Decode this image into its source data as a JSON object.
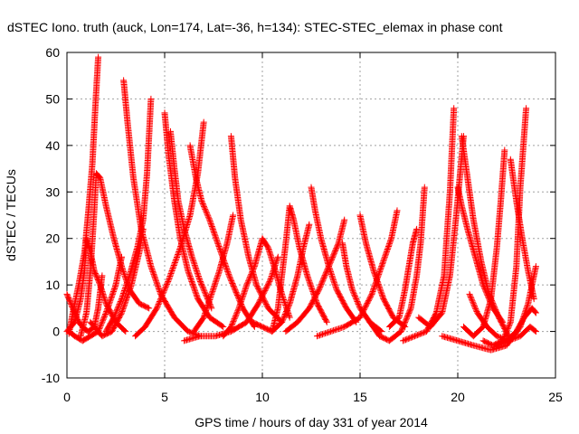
{
  "chart_data": {
    "type": "scatter",
    "title": "dSTEC Iono. truth (auck, Lon=174, Lat=-36, h=134): STEC-STEC_elemax in phase cont",
    "xlabel": "GPS time / hours of day 331 of year 2014",
    "ylabel": "dSTEC  / TECUs",
    "xlim": [
      0,
      25
    ],
    "ylim": [
      -10,
      60
    ],
    "x_ticks": [
      0,
      5,
      10,
      15,
      20,
      25
    ],
    "y_ticks": [
      -10,
      0,
      10,
      20,
      30,
      40,
      50,
      60
    ],
    "grid": true,
    "marker": "plus",
    "color": "#ff0000",
    "series": [
      {
        "points": [
          [
            0.0,
            8
          ],
          [
            0.3,
            5
          ],
          [
            0.6,
            2
          ],
          [
            0.9,
            0.5
          ],
          [
            1.1,
            0
          ],
          [
            1.4,
            1
          ],
          [
            1.6,
            5
          ],
          [
            1.8,
            12
          ]
        ]
      },
      {
        "points": [
          [
            0.1,
            -0.5
          ],
          [
            0.3,
            4
          ],
          [
            0.6,
            10
          ],
          [
            0.9,
            17
          ],
          [
            1.1,
            26
          ],
          [
            1.3,
            36
          ],
          [
            1.45,
            48
          ],
          [
            1.6,
            59
          ]
        ]
      },
      {
        "points": [
          [
            0.0,
            0
          ],
          [
            0.4,
            2
          ],
          [
            0.7,
            7
          ],
          [
            0.9,
            13
          ],
          [
            1.0,
            20
          ],
          [
            1.2,
            17
          ],
          [
            1.4,
            13
          ],
          [
            1.7,
            10
          ],
          [
            2.0,
            6
          ],
          [
            2.5,
            2
          ],
          [
            3.0,
            0
          ]
        ]
      },
      {
        "points": [
          [
            0.7,
            -1
          ],
          [
            1.0,
            4
          ],
          [
            1.2,
            13
          ],
          [
            1.4,
            26
          ],
          [
            1.5,
            34
          ],
          [
            1.7,
            33
          ],
          [
            2.0,
            27
          ],
          [
            2.4,
            20
          ],
          [
            2.8,
            14
          ],
          [
            3.2,
            9
          ],
          [
            3.7,
            6
          ],
          [
            4.2,
            5
          ]
        ]
      },
      {
        "points": [
          [
            0.1,
            0
          ],
          [
            0.4,
            -1
          ],
          [
            0.8,
            -2
          ],
          [
            1.2,
            -1
          ],
          [
            1.6,
            0
          ],
          [
            2.0,
            4
          ],
          [
            2.5,
            10
          ],
          [
            2.8,
            16
          ]
        ]
      },
      {
        "points": [
          [
            2.9,
            54
          ],
          [
            3.1,
            45
          ],
          [
            3.4,
            33
          ],
          [
            3.8,
            22
          ],
          [
            4.3,
            14
          ],
          [
            4.8,
            8
          ],
          [
            5.5,
            3
          ],
          [
            6.2,
            0
          ],
          [
            6.8,
            -1
          ]
        ]
      },
      {
        "points": [
          [
            2.0,
            0
          ],
          [
            2.4,
            3
          ],
          [
            2.8,
            7
          ],
          [
            3.2,
            12
          ],
          [
            3.6,
            18
          ],
          [
            3.9,
            24
          ],
          [
            4.1,
            34
          ],
          [
            4.3,
            50
          ]
        ]
      },
      {
        "points": [
          [
            1.2,
            2
          ],
          [
            1.8,
            -1
          ],
          [
            2.3,
            0
          ],
          [
            2.8,
            4
          ],
          [
            3.3,
            10
          ],
          [
            3.7,
            17
          ],
          [
            3.9,
            22
          ]
        ]
      },
      {
        "points": [
          [
            5.0,
            47
          ],
          [
            5.2,
            38
          ],
          [
            5.5,
            28
          ],
          [
            5.8,
            20
          ],
          [
            6.2,
            13
          ],
          [
            6.7,
            7
          ],
          [
            7.3,
            3
          ],
          [
            8.0,
            1
          ]
        ]
      },
      {
        "points": [
          [
            5.3,
            43
          ],
          [
            5.5,
            35
          ],
          [
            5.7,
            28
          ],
          [
            6.0,
            22
          ],
          [
            6.4,
            16
          ],
          [
            6.8,
            11
          ],
          [
            7.4,
            5
          ]
        ]
      },
      {
        "points": [
          [
            3.5,
            -1
          ],
          [
            4.0,
            1
          ],
          [
            4.6,
            5
          ],
          [
            5.2,
            11
          ],
          [
            5.8,
            18
          ],
          [
            6.3,
            25
          ],
          [
            6.7,
            34
          ],
          [
            7.0,
            45
          ]
        ]
      },
      {
        "points": [
          [
            6.3,
            40
          ],
          [
            6.6,
            33
          ],
          [
            6.9,
            28
          ],
          [
            7.3,
            24
          ],
          [
            7.8,
            18
          ],
          [
            8.3,
            12
          ],
          [
            9.0,
            5
          ],
          [
            9.6,
            1
          ]
        ]
      },
      {
        "points": [
          [
            6.5,
            0
          ],
          [
            7.0,
            3
          ],
          [
            7.4,
            8
          ],
          [
            7.8,
            13
          ],
          [
            8.2,
            19
          ],
          [
            8.5,
            25
          ]
        ]
      },
      {
        "points": [
          [
            8.4,
            42
          ],
          [
            8.6,
            33
          ],
          [
            8.9,
            24
          ],
          [
            9.3,
            16
          ],
          [
            9.7,
            10
          ],
          [
            10.3,
            5
          ],
          [
            11.0,
            2
          ]
        ]
      },
      {
        "points": [
          [
            8.0,
            -1
          ],
          [
            8.4,
            1
          ],
          [
            8.8,
            5
          ],
          [
            9.2,
            10
          ],
          [
            9.6,
            14
          ],
          [
            10.0,
            20
          ],
          [
            10.3,
            18
          ],
          [
            10.6,
            14
          ],
          [
            11.0,
            8
          ],
          [
            11.4,
            3
          ]
        ]
      },
      {
        "points": [
          [
            6.0,
            -2
          ],
          [
            6.8,
            -1
          ],
          [
            7.6,
            -1
          ],
          [
            8.4,
            0
          ],
          [
            9.2,
            2
          ],
          [
            9.8,
            6
          ],
          [
            10.4,
            11
          ],
          [
            10.8,
            16
          ]
        ]
      },
      {
        "points": [
          [
            10.5,
            0
          ],
          [
            10.8,
            5
          ],
          [
            11.0,
            12
          ],
          [
            11.2,
            19
          ],
          [
            11.4,
            27
          ],
          [
            11.6,
            24
          ],
          [
            11.9,
            18
          ],
          [
            12.3,
            12
          ],
          [
            12.8,
            6
          ],
          [
            13.3,
            2
          ]
        ]
      },
      {
        "points": [
          [
            9.5,
            2
          ],
          [
            10.0,
            1
          ],
          [
            10.5,
            0
          ],
          [
            11.0,
            2
          ],
          [
            11.4,
            6
          ],
          [
            11.8,
            12
          ],
          [
            12.1,
            18
          ],
          [
            12.4,
            23
          ]
        ]
      },
      {
        "points": [
          [
            12.5,
            31
          ],
          [
            12.7,
            26
          ],
          [
            13.0,
            20
          ],
          [
            13.4,
            14
          ],
          [
            13.8,
            9
          ],
          [
            14.3,
            5
          ],
          [
            14.8,
            2
          ]
        ]
      },
      {
        "points": [
          [
            11.2,
            0
          ],
          [
            11.8,
            2
          ],
          [
            12.4,
            5
          ],
          [
            12.9,
            9
          ],
          [
            13.4,
            14
          ],
          [
            13.9,
            19
          ],
          [
            14.2,
            24
          ]
        ]
      },
      {
        "points": [
          [
            14.1,
            19
          ],
          [
            14.3,
            14
          ],
          [
            14.6,
            9
          ],
          [
            15.0,
            5
          ],
          [
            15.5,
            2
          ],
          [
            16.1,
            0
          ]
        ]
      },
      {
        "points": [
          [
            15.0,
            25
          ],
          [
            15.3,
            19
          ],
          [
            15.7,
            13
          ],
          [
            16.2,
            7
          ],
          [
            16.7,
            3
          ],
          [
            17.3,
            1
          ]
        ]
      },
      {
        "points": [
          [
            12.8,
            -1
          ],
          [
            13.5,
            0
          ],
          [
            14.2,
            1
          ],
          [
            15.0,
            3
          ],
          [
            15.6,
            8
          ],
          [
            16.1,
            14
          ],
          [
            16.6,
            20
          ],
          [
            16.9,
            26
          ]
        ]
      },
      {
        "points": [
          [
            15.5,
            2
          ],
          [
            16.0,
            -1
          ],
          [
            16.5,
            -2
          ],
          [
            17.1,
            0
          ],
          [
            17.6,
            5
          ],
          [
            17.9,
            12
          ],
          [
            18.1,
            19
          ],
          [
            18.3,
            31
          ]
        ]
      },
      {
        "points": [
          [
            16.5,
            1
          ],
          [
            17.0,
            3
          ],
          [
            17.3,
            9
          ],
          [
            17.5,
            14
          ],
          [
            17.7,
            19
          ],
          [
            17.9,
            22
          ]
        ]
      },
      {
        "points": [
          [
            18.0,
            3
          ],
          [
            18.6,
            1
          ],
          [
            19.2,
            4
          ],
          [
            19.6,
            12
          ],
          [
            19.9,
            24
          ],
          [
            20.1,
            33
          ],
          [
            20.3,
            42
          ]
        ]
      },
      {
        "points": [
          [
            17.2,
            -2
          ],
          [
            17.8,
            -1
          ],
          [
            18.4,
            0
          ],
          [
            18.9,
            4
          ],
          [
            19.3,
            12
          ],
          [
            19.6,
            30
          ],
          [
            19.8,
            48
          ]
        ]
      },
      {
        "points": [
          [
            20.0,
            31
          ],
          [
            20.2,
            27
          ],
          [
            20.5,
            22
          ],
          [
            20.9,
            16
          ],
          [
            21.3,
            10
          ],
          [
            21.8,
            5
          ],
          [
            22.3,
            2
          ]
        ]
      },
      {
        "points": [
          [
            20.2,
            42
          ],
          [
            20.5,
            33
          ],
          [
            20.8,
            24
          ],
          [
            21.2,
            15
          ],
          [
            21.6,
            8
          ],
          [
            22.1,
            3
          ],
          [
            22.6,
            -1
          ]
        ]
      },
      {
        "points": [
          [
            20.3,
            1
          ],
          [
            20.8,
            -1
          ],
          [
            21.3,
            1
          ],
          [
            21.7,
            7
          ],
          [
            22.0,
            18
          ],
          [
            22.2,
            28
          ],
          [
            22.4,
            39
          ]
        ]
      },
      {
        "points": [
          [
            21.3,
            -2
          ],
          [
            21.8,
            -3
          ],
          [
            22.3,
            -2
          ],
          [
            22.7,
            2
          ],
          [
            23.0,
            14
          ],
          [
            23.2,
            31
          ],
          [
            23.5,
            48
          ]
        ]
      },
      {
        "points": [
          [
            22.7,
            37
          ],
          [
            23.0,
            28
          ],
          [
            23.3,
            20
          ],
          [
            23.6,
            13
          ],
          [
            23.9,
            7
          ]
        ]
      },
      {
        "points": [
          [
            19.2,
            -1
          ],
          [
            20.0,
            -2
          ],
          [
            20.8,
            -3
          ],
          [
            21.7,
            -4
          ],
          [
            22.5,
            -3
          ],
          [
            23.2,
            1
          ],
          [
            23.6,
            6
          ],
          [
            24.0,
            14
          ]
        ]
      },
      {
        "points": [
          [
            22.0,
            -3
          ],
          [
            22.5,
            -2
          ],
          [
            23.0,
            0
          ],
          [
            23.4,
            3
          ],
          [
            23.8,
            5
          ],
          [
            24.0,
            4
          ]
        ]
      },
      {
        "points": [
          [
            20.6,
            8
          ],
          [
            21.0,
            4
          ],
          [
            21.5,
            1
          ],
          [
            22.0,
            -1
          ],
          [
            22.6,
            -2
          ],
          [
            23.2,
            -1
          ],
          [
            23.7,
            1
          ],
          [
            24.0,
            0
          ]
        ]
      }
    ]
  }
}
